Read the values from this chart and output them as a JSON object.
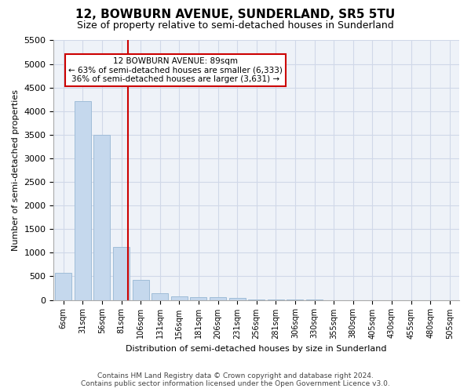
{
  "title": "12, BOWBURN AVENUE, SUNDERLAND, SR5 5TU",
  "subtitle": "Size of property relative to semi-detached houses in Sunderland",
  "xlabel": "Distribution of semi-detached houses by size in Sunderland",
  "ylabel": "Number of semi-detached properties",
  "footer_line1": "Contains HM Land Registry data © Crown copyright and database right 2024.",
  "footer_line2": "Contains public sector information licensed under the Open Government Licence v3.0.",
  "bin_labels": [
    "6sqm",
    "31sqm",
    "56sqm",
    "81sqm",
    "106sqm",
    "131sqm",
    "156sqm",
    "181sqm",
    "206sqm",
    "231sqm",
    "256sqm",
    "281sqm",
    "306sqm",
    "330sqm",
    "355sqm",
    "380sqm",
    "405sqm",
    "430sqm",
    "455sqm",
    "480sqm",
    "505sqm"
  ],
  "bar_values": [
    580,
    4220,
    3500,
    1130,
    420,
    150,
    75,
    65,
    55,
    50,
    5,
    5,
    2,
    2,
    0,
    0,
    0,
    0,
    0,
    0,
    0
  ],
  "bar_color": "#c5d8ed",
  "bar_edge_color": "#a0bdd8",
  "property_line_x": 3.35,
  "property_sqm": 89,
  "pct_smaller": 63,
  "count_smaller": 6333,
  "pct_larger": 36,
  "count_larger": 3631,
  "annotation_box_color": "#cc0000",
  "ylim": [
    0,
    5500
  ],
  "yticks": [
    0,
    500,
    1000,
    1500,
    2000,
    2500,
    3000,
    3500,
    4000,
    4500,
    5000,
    5500
  ],
  "grid_color": "#d0d8e8",
  "background_color": "#eef2f8"
}
